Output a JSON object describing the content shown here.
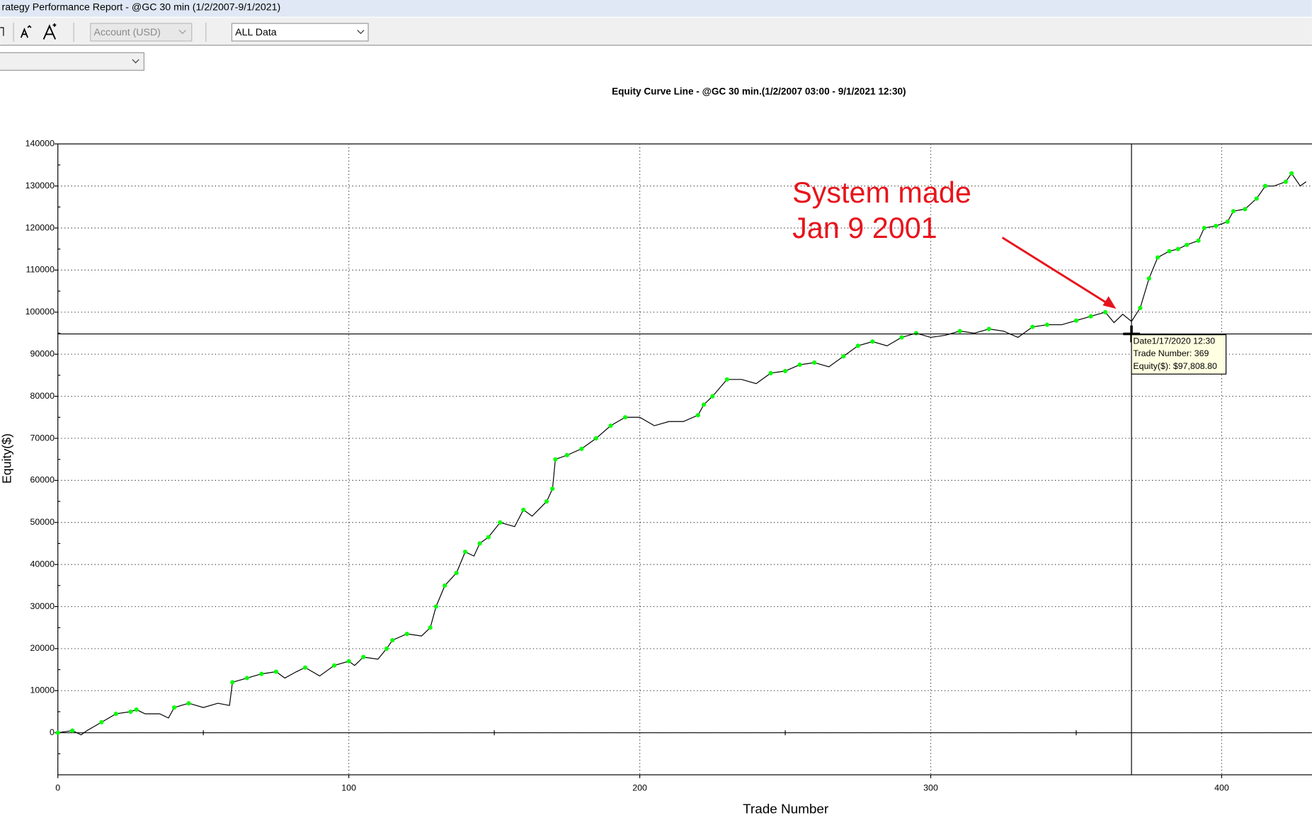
{
  "window": {
    "title": "rategy Performance Report - @GC 30 min (1/2/2007-9/1/2021)"
  },
  "toolbar": {
    "account": "Account (USD)",
    "range": "ALL Data"
  },
  "chart_data": {
    "type": "line",
    "title": "Equity Curve Line - @GC 30 min.(1/2/2007 03:00 - 9/1/2021 12:30)",
    "x_label": "Trade Number",
    "y_label": "Equity($)",
    "x": [
      0,
      5,
      8,
      10,
      15,
      20,
      25,
      27,
      30,
      35,
      38,
      40,
      45,
      50,
      55,
      59,
      60,
      65,
      70,
      75,
      78,
      82,
      85,
      90,
      95,
      100,
      102,
      105,
      110,
      113,
      115,
      120,
      125,
      128,
      130,
      133,
      137,
      140,
      143,
      145,
      148,
      152,
      157,
      160,
      163,
      168,
      170,
      171,
      175,
      180,
      185,
      190,
      195,
      200,
      205,
      210,
      215,
      220,
      222,
      225,
      230,
      235,
      240,
      245,
      250,
      255,
      260,
      265,
      270,
      275,
      280,
      285,
      290,
      295,
      300,
      305,
      310,
      315,
      320,
      325,
      330,
      335,
      340,
      345,
      350,
      355,
      360,
      363,
      366,
      369,
      372,
      375,
      378,
      382,
      385,
      388,
      392,
      394,
      398,
      402,
      404,
      408,
      412,
      415,
      418,
      422,
      424,
      427,
      429
    ],
    "values": [
      0,
      500,
      -500,
      500,
      2500,
      4500,
      5000,
      5500,
      4500,
      4500,
      3500,
      6000,
      7000,
      6000,
      7000,
      6500,
      12000,
      13000,
      14000,
      14500,
      13000,
      14500,
      15500,
      13500,
      16000,
      17000,
      16000,
      18000,
      17500,
      20000,
      22000,
      23500,
      23000,
      25000,
      30000,
      35000,
      38000,
      43000,
      42000,
      45000,
      46500,
      50000,
      49000,
      53000,
      51500,
      55000,
      58000,
      65000,
      66000,
      67500,
      70000,
      73000,
      75000,
      75000,
      73000,
      74000,
      74000,
      75500,
      78000,
      80000,
      84000,
      84000,
      83000,
      85500,
      86000,
      87500,
      88000,
      87000,
      89500,
      92000,
      93000,
      92000,
      94000,
      95000,
      94000,
      94500,
      95500,
      95000,
      96000,
      95500,
      94000,
      96500,
      97000,
      97000,
      98000,
      99000,
      100000,
      97500,
      99500,
      97808.8,
      101000,
      108000,
      113000,
      114500,
      115000,
      116000,
      117000,
      120000,
      120500,
      121500,
      124000,
      124500,
      127000,
      130000,
      130000,
      131000,
      133000,
      130000,
      131000
    ],
    "color": "#000000",
    "marker_color": "#00ff00",
    "xlim": [
      0,
      431
    ],
    "ylim": [
      -10000,
      140000
    ],
    "xticks": [
      0,
      100,
      200,
      300,
      400
    ],
    "yticks": [
      0,
      10000,
      20000,
      30000,
      40000,
      50000,
      60000,
      70000,
      80000,
      90000,
      100000,
      110000,
      120000,
      130000,
      140000
    ],
    "grid": true,
    "crosshair": {
      "x": 369,
      "y": 97808.8
    },
    "tooltip": [
      "Date1/17/2020 12:30",
      "Trade Number: 369",
      "Equity($): $97,808.80"
    ],
    "annotation": [
      "System made",
      "Jan 9 2001"
    ]
  }
}
